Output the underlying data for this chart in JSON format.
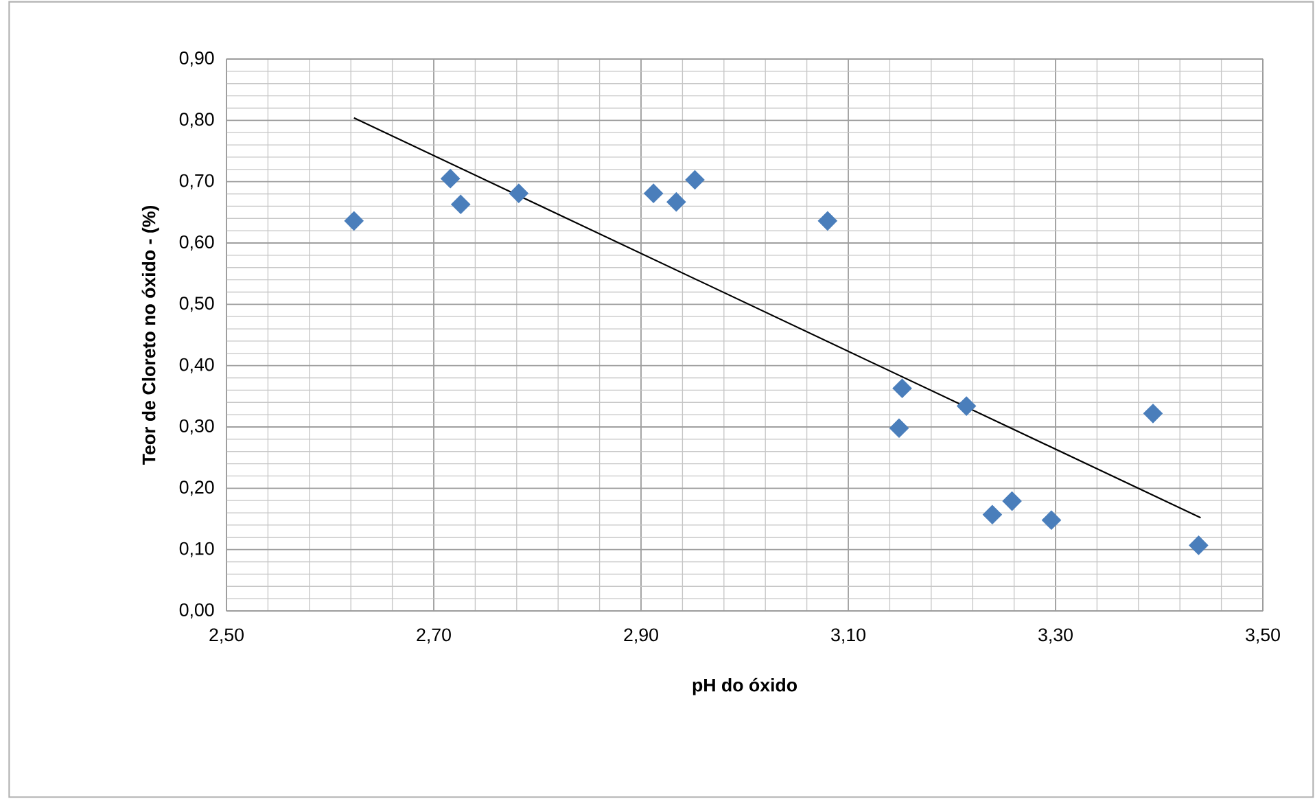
{
  "chart_data": {
    "type": "scatter",
    "xlabel": "pH do óxido",
    "ylabel": "Teor de Cloreto no óxido - (%)",
    "xlim": [
      2.5,
      3.5
    ],
    "ylim": [
      0,
      0.9
    ],
    "xticks": [
      {
        "value": 2.5,
        "label": "2,50"
      },
      {
        "value": 2.7,
        "label": "2,70"
      },
      {
        "value": 2.9,
        "label": "2,90"
      },
      {
        "value": 3.1,
        "label": "3,10"
      },
      {
        "value": 3.3,
        "label": "3,30"
      },
      {
        "value": 3.5,
        "label": "3,50"
      }
    ],
    "yticks": [
      {
        "value": 0,
        "label": "0,00"
      },
      {
        "value": 0.1,
        "label": "0,10"
      },
      {
        "value": 0.2,
        "label": "0,20"
      },
      {
        "value": 0.3,
        "label": "0,30"
      },
      {
        "value": 0.4,
        "label": "0,40"
      },
      {
        "value": 0.5,
        "label": "0,50"
      },
      {
        "value": 0.6,
        "label": "0,60"
      },
      {
        "value": 0.7,
        "label": "0,70"
      },
      {
        "value": 0.8,
        "label": "0,80"
      },
      {
        "value": 0.9,
        "label": "0,90"
      }
    ],
    "grid": true,
    "series": [
      {
        "color": "#4a7ebb",
        "marker": "diamond",
        "x": [
          2.623,
          2.716,
          2.726,
          2.782,
          2.912,
          2.934,
          2.952,
          3.08,
          3.152,
          3.149,
          3.214,
          3.239,
          3.258,
          3.296,
          3.394,
          3.438
        ],
        "values": [
          0.636,
          0.705,
          0.663,
          0.681,
          0.681,
          0.667,
          0.703,
          0.636,
          0.363,
          0.298,
          0.334,
          0.157,
          0.179,
          0.148,
          0.322,
          0.107
        ]
      },
      {
        "type": "line",
        "color": "#000000",
        "marker": "none",
        "x": [
          2.623,
          3.44
        ],
        "values": [
          0.804,
          0.152
        ]
      }
    ]
  }
}
